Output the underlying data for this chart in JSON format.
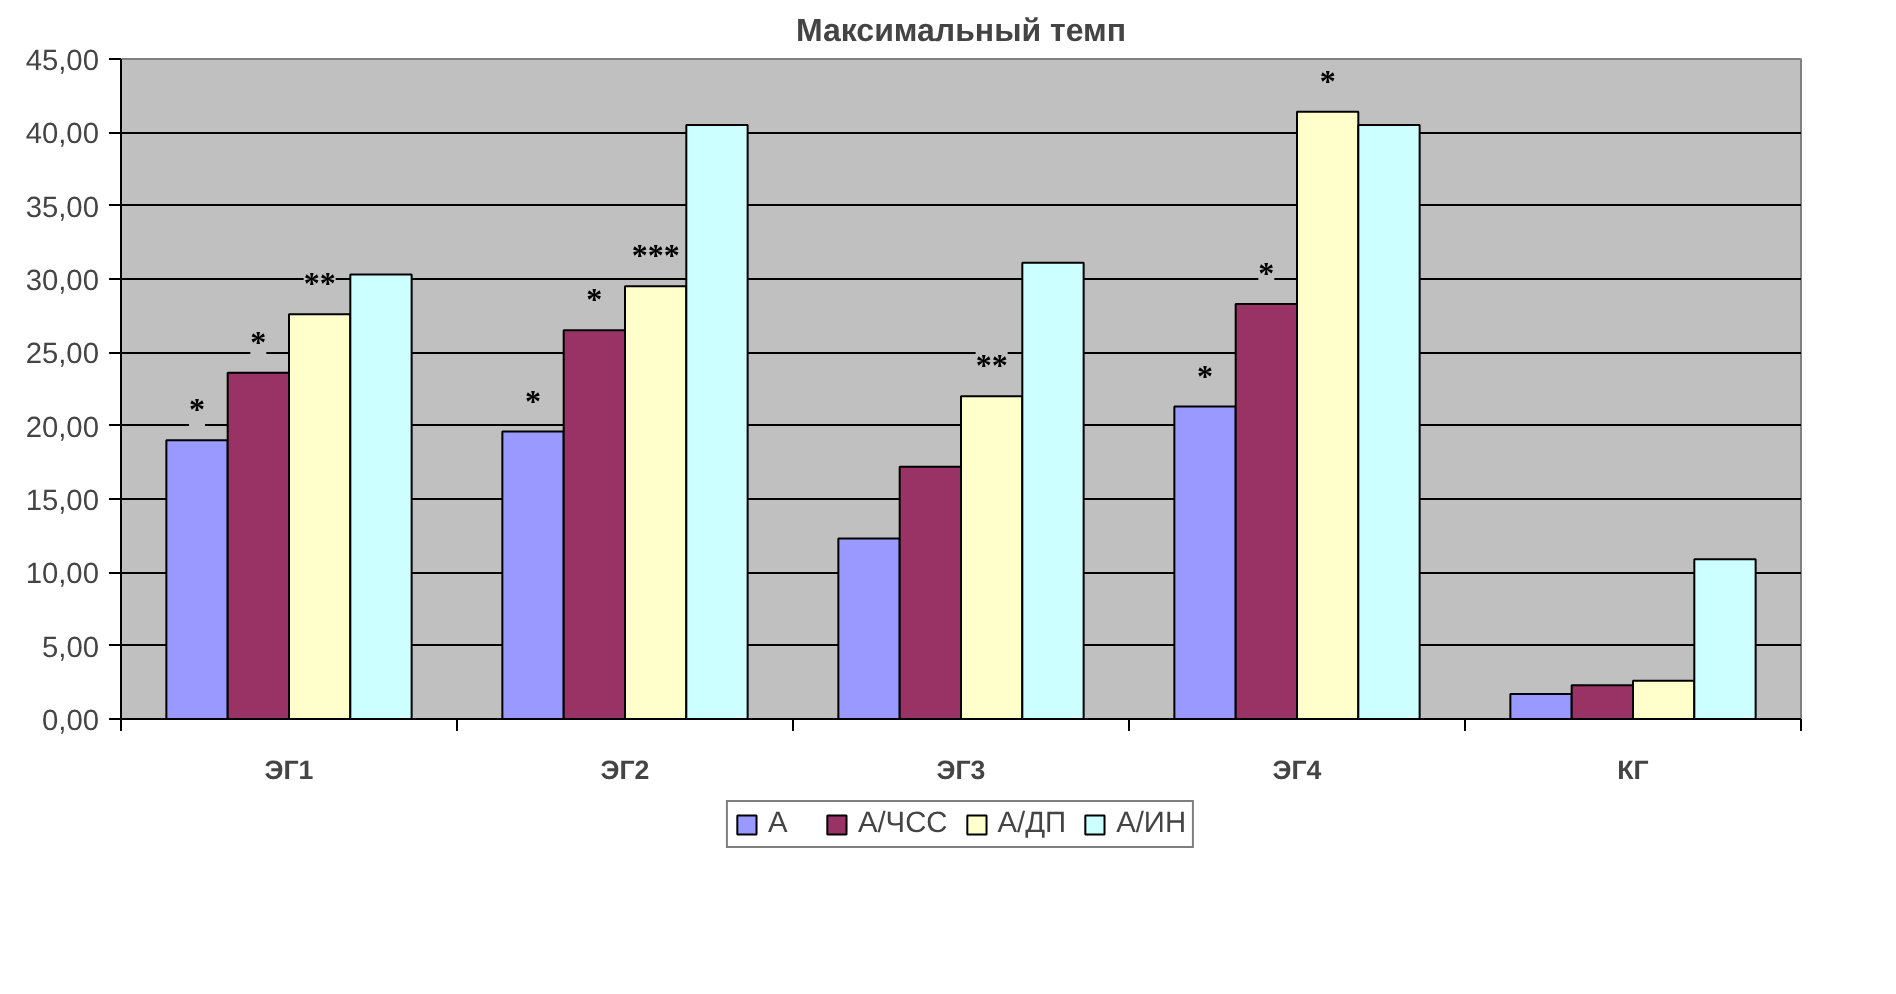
{
  "chart_data": {
    "type": "bar",
    "title": "Максимальный темп",
    "categories": [
      "ЭГ1",
      "ЭГ2",
      "ЭГ3",
      "ЭГ4",
      "КГ"
    ],
    "series": [
      {
        "name": "А",
        "color": "#9999ff",
        "values": [
          19.0,
          19.6,
          12.3,
          21.3,
          1.7
        ],
        "value_labels": [
          "*",
          "*",
          null,
          "*",
          null
        ]
      },
      {
        "name": "А/ЧСС",
        "color": "#993366",
        "values": [
          23.6,
          26.5,
          17.2,
          28.3,
          2.3
        ],
        "value_labels": [
          "*",
          "*",
          null,
          "*",
          null
        ]
      },
      {
        "name": "А/ДП",
        "color": "#ffffcc",
        "values": [
          27.6,
          29.5,
          22.0,
          41.4,
          2.6
        ],
        "value_labels": [
          "**",
          "***",
          "**",
          "*",
          null
        ]
      },
      {
        "name": "А/ИН",
        "color": "#ccffff",
        "values": [
          30.3,
          40.5,
          31.1,
          40.5,
          10.9
        ],
        "value_labels": [
          null,
          null,
          null,
          null,
          null
        ]
      }
    ],
    "ylim": [
      0,
      45
    ],
    "yticks": [
      {
        "value": 0,
        "label": "0,00"
      },
      {
        "value": 5,
        "label": "5,00"
      },
      {
        "value": 10,
        "label": "10,00"
      },
      {
        "value": 15,
        "label": "15,00"
      },
      {
        "value": 20,
        "label": "20,00"
      },
      {
        "value": 25,
        "label": "25,00"
      },
      {
        "value": 30,
        "label": "30,00"
      },
      {
        "value": 35,
        "label": "35,00"
      },
      {
        "value": 40,
        "label": "40,00"
      },
      {
        "value": 45,
        "label": "45,00"
      }
    ],
    "grid": "y",
    "legend": "bottom"
  }
}
